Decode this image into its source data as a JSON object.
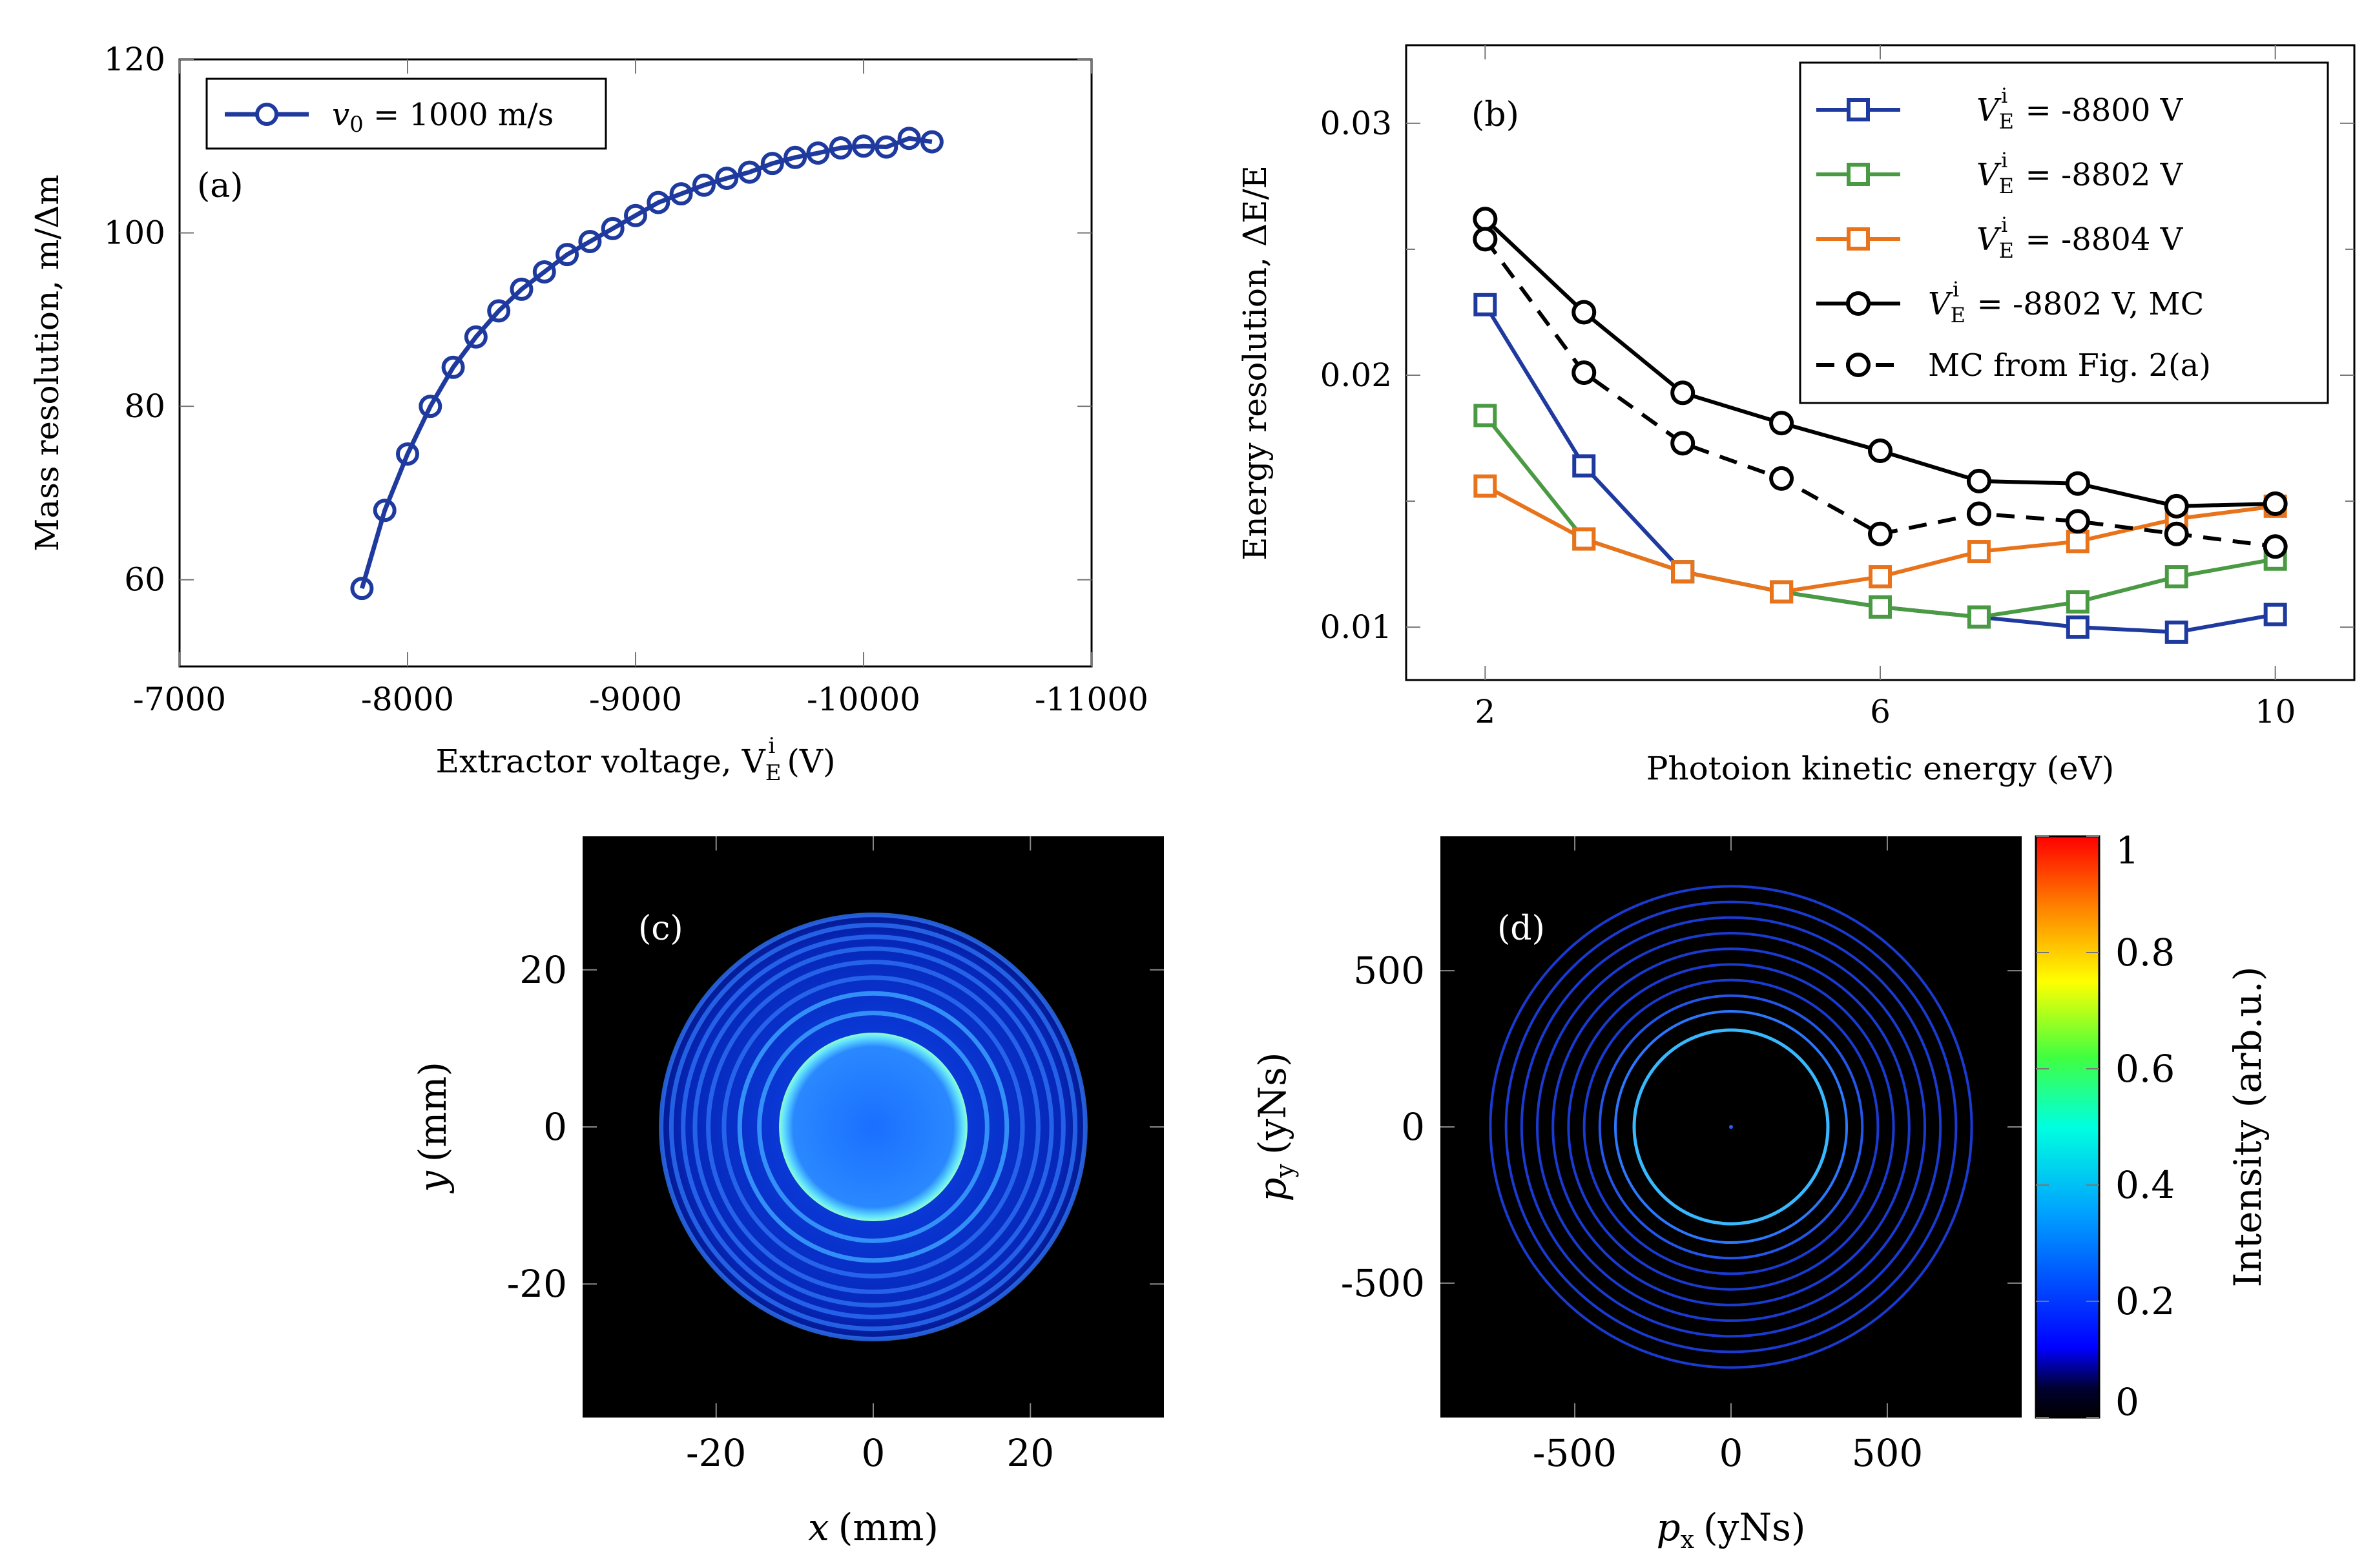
{
  "colors": {
    "blue": "#1f3a9e",
    "blue2": "#2339a6",
    "green": "#4a9a44",
    "orange": "#e8731a",
    "black": "#000000"
  },
  "chart_data": [
    {
      "id": "a",
      "type": "line",
      "panel_label": "(a)",
      "xlabel": "Extractor voltage, V",
      "xlabel_sub": "E",
      "xlabel_sup": "i",
      "xlabel_unit": "(V)",
      "ylabel": "Mass resolution, m/Δm",
      "xlim": [
        -7000,
        -11000
      ],
      "ylim": [
        50,
        120
      ],
      "xticks": [
        -7000,
        -8000,
        -9000,
        -10000,
        -11000
      ],
      "yticks": [
        60,
        80,
        100,
        120
      ],
      "xtick_labels": [
        "-7000",
        "-8000",
        "-9000",
        "-10000",
        "-11000"
      ],
      "ytick_labels": [
        "60",
        "80",
        "100",
        "120"
      ],
      "legend_pos": "top-left",
      "series": [
        {
          "name": "v0 = 1000 m/s",
          "legend_label": "v",
          "legend_sub": "0",
          "legend_rest": " = 1000 m/s",
          "color": "#1f3a9e",
          "marker": "circle",
          "dash": "solid",
          "x": [
            -7800,
            -7900,
            -8000,
            -8100,
            -8200,
            -8300,
            -8400,
            -8500,
            -8600,
            -8700,
            -8800,
            -8900,
            -9000,
            -9100,
            -9200,
            -9300,
            -9400,
            -9500,
            -9600,
            -9700,
            -9800,
            -9900,
            -10000,
            -10100,
            -10200,
            -10300
          ],
          "y": [
            59,
            68,
            74.5,
            80,
            84.5,
            88,
            91,
            93.5,
            95.5,
            97.5,
            99,
            100.5,
            102,
            103.5,
            104.5,
            105.5,
            106.3,
            107,
            108,
            108.7,
            109.2,
            109.8,
            110,
            109.9,
            110.9,
            110.5
          ]
        }
      ]
    },
    {
      "id": "b",
      "type": "line",
      "panel_label": "(b)",
      "xlabel": "Photoion kinetic energy (eV)",
      "ylabel": "Energy resolution, ΔE/E",
      "xlim": [
        1.2,
        10.8
      ],
      "ylim": [
        0.0079,
        0.0331
      ],
      "xticks": [
        2,
        6,
        10
      ],
      "yticks": [
        0.01,
        0.02,
        0.03
      ],
      "xtick_labels": [
        "2",
        "6",
        "10"
      ],
      "ytick_labels": [
        "0.01",
        "0.02",
        "0.03"
      ],
      "legend_pos": "top-right",
      "series": [
        {
          "name": "VEi = -8800 V",
          "legend_rest": " = -8800 V",
          "color": "#1f3a9e",
          "marker": "square",
          "dash": "solid",
          "x": [
            2,
            3,
            4,
            5,
            6,
            7,
            8,
            9,
            10
          ],
          "y": [
            0.0228,
            0.0164,
            0.0122,
            0.0114,
            0.0108,
            0.0104,
            0.01,
            0.0098,
            0.0105
          ]
        },
        {
          "name": "VEi = -8802 V",
          "legend_rest": " = -8802 V",
          "color": "#4a9a44",
          "marker": "square",
          "dash": "solid",
          "x": [
            2,
            3,
            4,
            5,
            6,
            7,
            8,
            9,
            10
          ],
          "y": [
            0.0184,
            0.0135,
            0.0122,
            0.0114,
            0.0108,
            0.0104,
            0.011,
            0.012,
            0.0127
          ]
        },
        {
          "name": "VEi = -8804 V",
          "legend_rest": " = -8804 V",
          "color": "#e8731a",
          "marker": "square",
          "dash": "solid",
          "x": [
            2,
            3,
            4,
            5,
            6,
            7,
            8,
            9,
            10
          ],
          "y": [
            0.0156,
            0.0135,
            0.0122,
            0.0114,
            0.012,
            0.013,
            0.0134,
            0.0143,
            0.0148
          ]
        },
        {
          "name": "VEi = -8802 V, MC",
          "legend_rest": " = -8802 V, MC",
          "color": "#000000",
          "marker": "circle",
          "dash": "solid",
          "x": [
            2,
            3,
            4,
            5,
            6,
            7,
            8,
            9,
            10
          ],
          "y": [
            0.0262,
            0.0225,
            0.0193,
            0.0181,
            0.017,
            0.0158,
            0.0157,
            0.0148,
            0.0149
          ]
        },
        {
          "name": "MC from Fig. 2(a)",
          "legend_rest": "MC from Fig. 2(a)",
          "color": "#000000",
          "marker": "circle",
          "dash": "dashed",
          "x": [
            2,
            3,
            4,
            5,
            6,
            7,
            8,
            9,
            10
          ],
          "y": [
            0.0254,
            0.0201,
            0.0173,
            0.0159,
            0.0137,
            0.0145,
            0.0142,
            0.0137,
            0.0132
          ]
        }
      ]
    },
    {
      "id": "c",
      "type": "heatmap",
      "panel_label": "(c)",
      "xlabel": "x",
      "xlabel_unit": "(mm)",
      "ylabel": "y",
      "ylabel_unit": "(mm)",
      "xlim": [
        -37,
        37
      ],
      "ylim": [
        -37,
        37
      ],
      "xticks": [
        -20,
        0,
        20
      ],
      "yticks": [
        -20,
        0,
        20
      ],
      "xtick_labels": [
        "-20",
        "0",
        "20"
      ],
      "ytick_labels": [
        "-20",
        "0",
        "20"
      ],
      "disk_radius": 12,
      "ring_radii": [
        14.5,
        17,
        19,
        21,
        22.7,
        24.2,
        25.7,
        27
      ]
    },
    {
      "id": "d",
      "type": "heatmap",
      "panel_label": "(d)",
      "xlabel": "p",
      "xlabel_sub": "x",
      "xlabel_unit": "(yNs)",
      "ylabel": "p",
      "ylabel_sub": "y",
      "ylabel_unit": "(yNs)",
      "xlim": [
        -930,
        930
      ],
      "ylim": [
        -930,
        930
      ],
      "xticks": [
        -500,
        0,
        500
      ],
      "yticks": [
        -500,
        0,
        500
      ],
      "xtick_labels": [
        "-500",
        "0",
        "500"
      ],
      "ytick_labels": [
        "500",
        "0",
        "-500"
      ],
      "ring_radii": [
        310,
        370,
        420,
        470,
        520,
        570,
        620,
        670,
        720,
        770
      ],
      "colorbar": {
        "label": "Intensity (arb.u.)",
        "range": [
          0,
          1
        ],
        "ticks": [
          0,
          0.2,
          0.4,
          0.6,
          0.8,
          1
        ],
        "tick_labels": [
          "0",
          "0.2",
          "0.4",
          "0.6",
          "0.8",
          "1"
        ]
      }
    }
  ]
}
